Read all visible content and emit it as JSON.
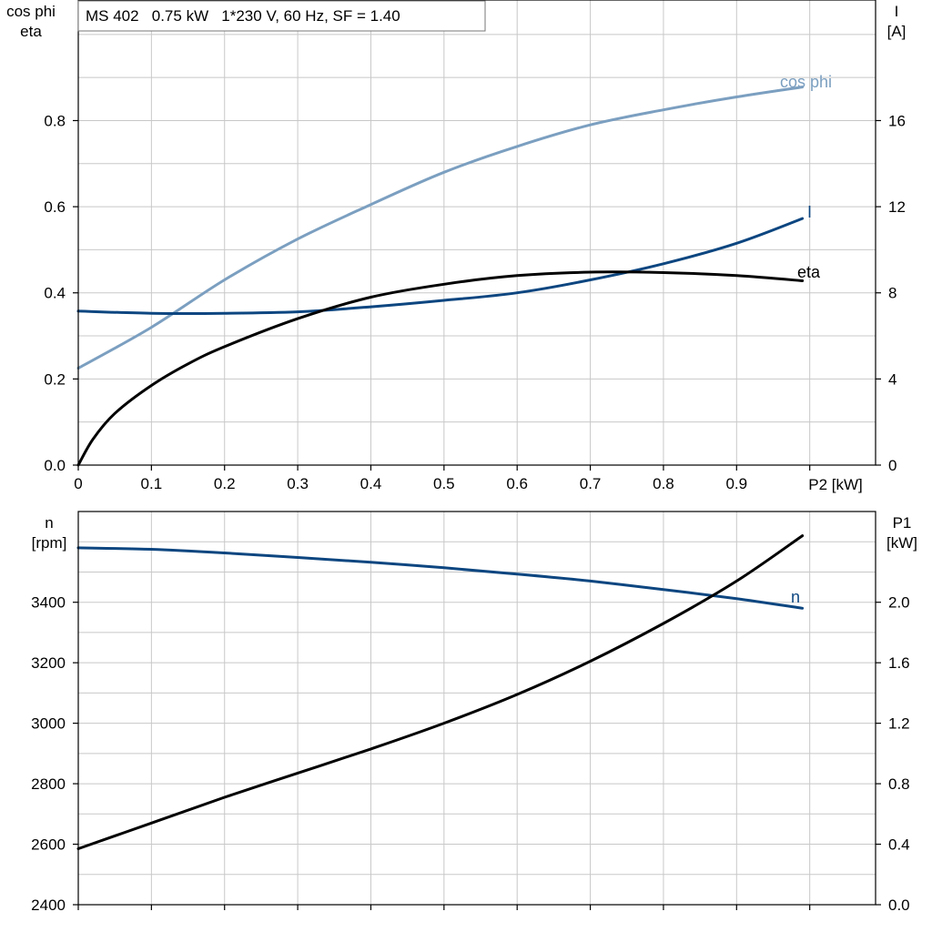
{
  "title_box": "MS 402   0.75 kW   1*230 V, 60 Hz, SF = 1.40",
  "colors": {
    "cosphi": "#7b9fc0",
    "current": "#0d4680",
    "eta": "#000000",
    "speed": "#0d4680",
    "power": "#000000"
  },
  "chart_data": [
    {
      "type": "line",
      "x_label": "P2 [kW]",
      "x_ticks": [
        "0",
        "0.1",
        "0.2",
        "0.3",
        "0.4",
        "0.5",
        "0.6",
        "0.7",
        "0.8",
        "0.9"
      ],
      "xlim": [
        0,
        1.09
      ],
      "left_axis": {
        "label_line1": "cos phi",
        "label_line2": "eta",
        "ylim": [
          0,
          1.08
        ],
        "ticks": [
          "0.0",
          "0.2",
          "0.4",
          "0.6",
          "0.8"
        ]
      },
      "right_axis": {
        "label_line1": "I",
        "label_line2": "[A]",
        "ylim": [
          0,
          21.6
        ],
        "ticks": [
          "0",
          "4",
          "8",
          "12",
          "16"
        ]
      },
      "series": [
        {
          "name": "cos phi",
          "axis": "left",
          "x": [
            0,
            0.1,
            0.2,
            0.3,
            0.4,
            0.5,
            0.6,
            0.7,
            0.8,
            0.9,
            0.99
          ],
          "y": [
            0.225,
            0.32,
            0.43,
            0.525,
            0.605,
            0.68,
            0.74,
            0.79,
            0.825,
            0.855,
            0.878
          ]
        },
        {
          "name": "I",
          "axis": "right",
          "x": [
            0,
            0.1,
            0.2,
            0.3,
            0.4,
            0.5,
            0.6,
            0.7,
            0.8,
            0.9,
            0.99
          ],
          "y": [
            7.15,
            7.05,
            7.05,
            7.12,
            7.35,
            7.65,
            8.0,
            8.6,
            9.35,
            10.3,
            11.45
          ]
        },
        {
          "name": "eta",
          "axis": "left",
          "x": [
            0,
            0.02,
            0.05,
            0.1,
            0.15,
            0.2,
            0.3,
            0.4,
            0.5,
            0.6,
            0.7,
            0.8,
            0.9,
            0.99
          ],
          "y": [
            0,
            0.06,
            0.12,
            0.185,
            0.235,
            0.275,
            0.34,
            0.39,
            0.42,
            0.44,
            0.448,
            0.447,
            0.44,
            0.428
          ]
        }
      ]
    },
    {
      "type": "line",
      "x_label": "",
      "xlim": [
        0,
        1.09
      ],
      "left_axis": {
        "label_line1": "n",
        "label_line2": "[rpm]",
        "ylim": [
          2400,
          3700
        ],
        "ticks": [
          "2400",
          "2600",
          "2800",
          "3000",
          "3200",
          "3400"
        ]
      },
      "right_axis": {
        "label_line1": "P1",
        "label_line2": "[kW]",
        "ylim": [
          0,
          2.6
        ],
        "ticks": [
          "0.0",
          "0.4",
          "0.8",
          "1.2",
          "1.6",
          "2.0"
        ]
      },
      "series": [
        {
          "name": "n",
          "axis": "left",
          "x": [
            0,
            0.1,
            0.2,
            0.3,
            0.4,
            0.5,
            0.6,
            0.7,
            0.8,
            0.9,
            0.99
          ],
          "y": [
            3580,
            3575,
            3563,
            3548,
            3532,
            3514,
            3493,
            3470,
            3442,
            3412,
            3380
          ]
        },
        {
          "axis": "right",
          "x": [
            0,
            0.1,
            0.2,
            0.3,
            0.4,
            0.5,
            0.6,
            0.7,
            0.8,
            0.9,
            0.99
          ],
          "y": [
            0.37,
            0.54,
            0.71,
            0.87,
            1.03,
            1.2,
            1.39,
            1.61,
            1.86,
            2.14,
            2.44
          ]
        }
      ]
    }
  ]
}
